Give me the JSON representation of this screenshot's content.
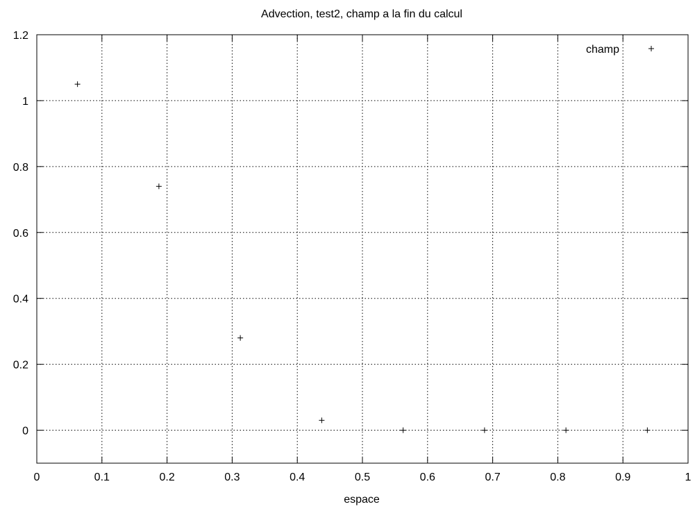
{
  "chart_data": {
    "type": "scatter",
    "title": "Advection, test2, champ a la fin du calcul",
    "xlabel": "espace",
    "ylabel": "",
    "xlim": [
      0,
      1
    ],
    "ylim": [
      -0.1,
      1.2
    ],
    "xticks": [
      "0",
      "0.1",
      "0.2",
      "0.3",
      "0.4",
      "0.5",
      "0.6",
      "0.7",
      "0.8",
      "0.9",
      "1"
    ],
    "yticks": [
      "0",
      "0.2",
      "0.4",
      "0.6",
      "0.8",
      "1",
      "1.2"
    ],
    "grid": true,
    "legend_position": "top-right",
    "marker": "plus",
    "series": [
      {
        "name": "champ",
        "x": [
          0.0625,
          0.1875,
          0.3125,
          0.4375,
          0.5625,
          0.6875,
          0.8125,
          0.9375
        ],
        "y": [
          1.05,
          0.74,
          0.28,
          0.03,
          0.0,
          0.0,
          0.0,
          0.0
        ]
      }
    ]
  }
}
